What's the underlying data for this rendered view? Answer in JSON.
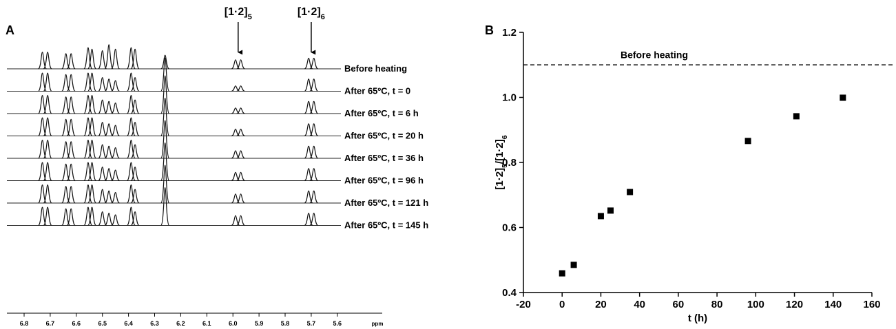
{
  "chart_data": [
    {
      "type": "nmr",
      "panel_label": "A",
      "xlabel": "ppm",
      "xlim": [
        6.866,
        5.428
      ],
      "xticks": [
        6.8,
        6.7,
        6.6,
        6.5,
        6.4,
        6.3,
        6.2,
        6.1,
        {
          "value": 6,
          "label": "6.0"
        },
        5.9,
        5.8,
        5.7,
        5.6
      ],
      "peaks": [
        6.73,
        6.71,
        6.64,
        6.62,
        6.555,
        6.54,
        6.5,
        6.475,
        6.45,
        6.39,
        6.375,
        6.26,
        5.99,
        5.97,
        5.71,
        5.69
      ],
      "series": [
        {
          "name": "Before heating",
          "heights": [
            1.1,
            1.1,
            1.0,
            1.0,
            1.4,
            1.3,
            1.2,
            1.6,
            1.3,
            1.4,
            1.3,
            0.9,
            0.6,
            0.6,
            0.7,
            0.7
          ]
        },
        {
          "name": "After 65ºC, t = 0",
          "heights": [
            1.2,
            1.2,
            1.1,
            1.1,
            1.2,
            1.2,
            0.9,
            0.8,
            0.7,
            1.2,
            0.9,
            2.2,
            0.35,
            0.35,
            0.8,
            0.8
          ]
        },
        {
          "name": "After 65ºC, t = 6 h",
          "heights": [
            1.2,
            1.2,
            1.1,
            1.1,
            1.2,
            1.2,
            0.9,
            0.8,
            0.7,
            1.2,
            0.9,
            2.5,
            0.37,
            0.37,
            0.8,
            0.8
          ]
        },
        {
          "name": "After 65ºC, t = 20 h",
          "heights": [
            1.2,
            1.2,
            1.1,
            1.1,
            1.2,
            1.2,
            0.9,
            0.8,
            0.7,
            1.2,
            0.9,
            2.5,
            0.45,
            0.45,
            0.8,
            0.8
          ]
        },
        {
          "name": "After 65ºC, t = 36 h",
          "heights": [
            1.2,
            1.2,
            1.1,
            1.1,
            1.2,
            1.2,
            0.9,
            0.8,
            0.7,
            1.2,
            0.9,
            2.5,
            0.5,
            0.5,
            0.8,
            0.8
          ]
        },
        {
          "name": "After 65ºC, t = 96 h",
          "heights": [
            1.2,
            1.2,
            1.1,
            1.1,
            1.2,
            1.2,
            0.9,
            0.8,
            0.7,
            1.2,
            0.9,
            2.5,
            0.55,
            0.55,
            0.8,
            0.8
          ]
        },
        {
          "name": "After 65ºC, t = 121 h",
          "heights": [
            1.2,
            1.2,
            1.1,
            1.1,
            1.2,
            1.2,
            0.9,
            0.8,
            0.7,
            1.2,
            0.9,
            2.5,
            0.6,
            0.6,
            0.8,
            0.8
          ]
        },
        {
          "name": "After 65ºC, t = 145 h",
          "heights": [
            1.2,
            1.2,
            1.1,
            1.1,
            1.2,
            1.2,
            0.9,
            0.8,
            0.7,
            1.2,
            0.9,
            2.5,
            0.65,
            0.65,
            0.8,
            0.8
          ]
        }
      ],
      "annotations": [
        {
          "text": "[1·2]",
          "sub": "5",
          "x": 5.98
        },
        {
          "text": "[1·2]",
          "sub": "6",
          "x": 5.7
        }
      ]
    },
    {
      "type": "scatter",
      "panel_label": "B",
      "xlabel": "t (h)",
      "ylabel": [
        {
          "text": "[1·2]",
          "sub": "5"
        },
        {
          "text": "/[1·2]",
          "sub": "6"
        }
      ],
      "x": [
        0,
        6,
        20,
        25,
        35,
        96,
        121,
        145
      ],
      "values": [
        0.459,
        0.485,
        0.635,
        0.652,
        0.709,
        0.866,
        0.942,
        0.999
      ],
      "color": "#000000",
      "xlim": [
        -20,
        160
      ],
      "xticks": [
        -20,
        0,
        20,
        40,
        60,
        80,
        100,
        120,
        140,
        160
      ],
      "ylim": [
        0.4,
        1.2
      ],
      "yticks": [
        0.4,
        0.6,
        0.8,
        {
          "value": 1,
          "label": "1.0"
        },
        1.2
      ],
      "reference_line": {
        "value": 1.1,
        "label": "Before heating"
      }
    }
  ]
}
